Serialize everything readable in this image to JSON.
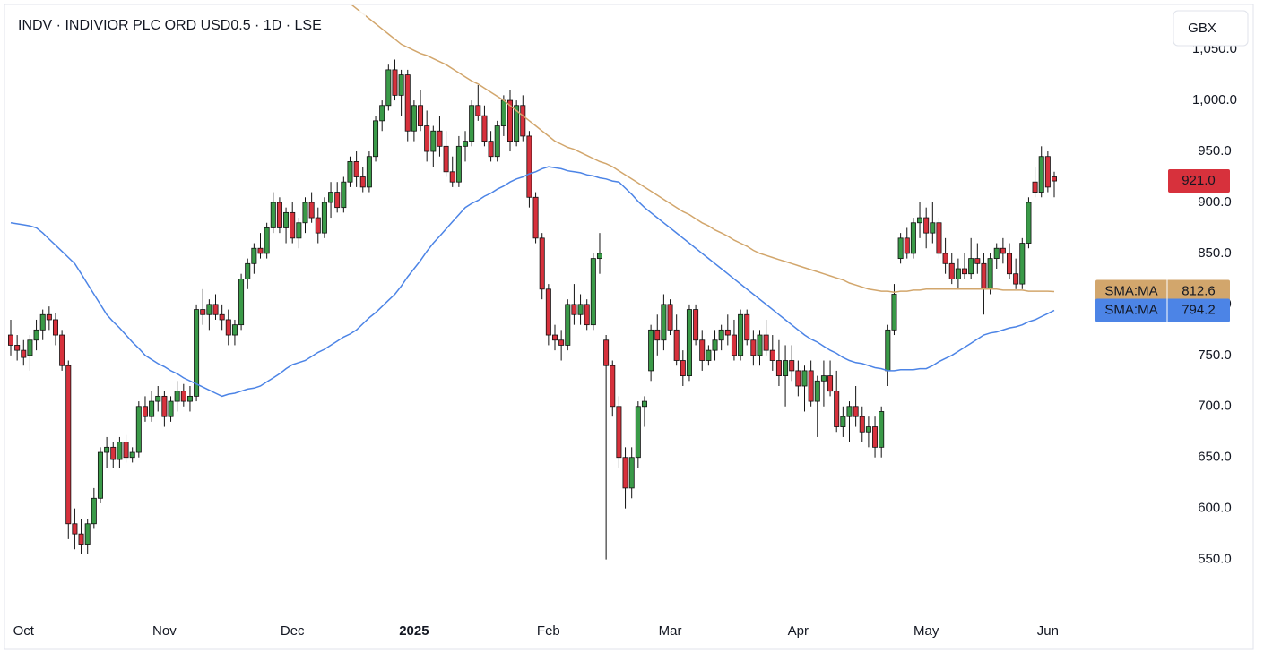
{
  "chart_data": {
    "type": "candlestick",
    "title": "INDV · INDIVIOR PLC ORD USD0.5 · 1D · LSE",
    "currency": "GBX",
    "up_color": "#3a9a48",
    "down_color": "#d7313c",
    "categories": [
      null,
      null,
      "Oct",
      null,
      null,
      null,
      null,
      null,
      null,
      null,
      null,
      null,
      null,
      null,
      null,
      null,
      null,
      null,
      null,
      null,
      null,
      null,
      null,
      null,
      "Nov",
      null,
      null,
      null,
      null,
      null,
      null,
      null,
      null,
      null,
      null,
      null,
      null,
      null,
      null,
      null,
      null,
      null,
      null,
      null,
      "Dec",
      null,
      null,
      null,
      null,
      null,
      null,
      null,
      null,
      null,
      null,
      null,
      null,
      null,
      null,
      null,
      null,
      null,
      null,
      "2025",
      null,
      null,
      null,
      null,
      null,
      null,
      null,
      null,
      null,
      null,
      null,
      null,
      null,
      null,
      null,
      null,
      null,
      null,
      null,
      null,
      "Feb",
      null,
      null,
      null,
      null,
      null,
      null,
      null,
      null,
      null,
      null,
      null,
      null,
      null,
      null,
      null,
      null,
      null,
      null,
      "Mar",
      null,
      null,
      null,
      null,
      null,
      null,
      null,
      null,
      null,
      null,
      null,
      null,
      null,
      null,
      null,
      null,
      null,
      null,
      null,
      "Apr",
      null,
      null,
      null,
      null,
      null,
      null,
      null,
      null,
      null,
      null,
      null,
      null,
      null,
      null,
      null,
      null,
      null,
      null,
      null,
      "May",
      null,
      null,
      null,
      null,
      null,
      null,
      null,
      null,
      null,
      null,
      null,
      null,
      null,
      null,
      null,
      null,
      null,
      null,
      "Jun",
      null
    ],
    "values": [
      [
        770,
        785,
        750,
        760
      ],
      [
        760,
        770,
        745,
        755
      ],
      [
        755,
        765,
        740,
        748
      ],
      [
        750,
        770,
        735,
        765
      ],
      [
        765,
        785,
        755,
        775
      ],
      [
        775,
        795,
        765,
        790
      ],
      [
        790,
        798,
        775,
        785
      ],
      [
        785,
        792,
        760,
        770
      ],
      [
        770,
        775,
        735,
        740
      ],
      [
        740,
        745,
        570,
        585
      ],
      [
        585,
        600,
        560,
        575
      ],
      [
        575,
        590,
        555,
        565
      ],
      [
        565,
        590,
        555,
        585
      ],
      [
        585,
        620,
        580,
        610
      ],
      [
        610,
        660,
        605,
        655
      ],
      [
        655,
        670,
        640,
        660
      ],
      [
        660,
        665,
        640,
        648
      ],
      [
        648,
        670,
        640,
        665
      ],
      [
        665,
        672,
        645,
        650
      ],
      [
        650,
        660,
        645,
        655
      ],
      [
        655,
        705,
        650,
        700
      ],
      [
        700,
        710,
        685,
        690
      ],
      [
        690,
        715,
        685,
        705
      ],
      [
        705,
        720,
        695,
        710
      ],
      [
        710,
        715,
        680,
        690
      ],
      [
        690,
        710,
        685,
        705
      ],
      [
        705,
        725,
        695,
        715
      ],
      [
        715,
        722,
        700,
        705
      ],
      [
        705,
        720,
        695,
        710
      ],
      [
        710,
        800,
        705,
        795
      ],
      [
        795,
        815,
        780,
        790
      ],
      [
        790,
        805,
        775,
        800
      ],
      [
        800,
        810,
        785,
        790
      ],
      [
        790,
        800,
        775,
        785
      ],
      [
        785,
        795,
        760,
        770
      ],
      [
        770,
        785,
        760,
        780
      ],
      [
        780,
        830,
        775,
        825
      ],
      [
        825,
        845,
        815,
        840
      ],
      [
        840,
        860,
        830,
        855
      ],
      [
        855,
        870,
        845,
        850
      ],
      [
        850,
        880,
        845,
        875
      ],
      [
        875,
        910,
        870,
        900
      ],
      [
        900,
        905,
        870,
        875
      ],
      [
        875,
        895,
        860,
        890
      ],
      [
        890,
        900,
        860,
        865
      ],
      [
        865,
        885,
        855,
        880
      ],
      [
        880,
        905,
        870,
        900
      ],
      [
        900,
        910,
        880,
        885
      ],
      [
        885,
        895,
        860,
        870
      ],
      [
        870,
        905,
        865,
        900
      ],
      [
        900,
        920,
        885,
        910
      ],
      [
        910,
        920,
        890,
        895
      ],
      [
        895,
        925,
        890,
        920
      ],
      [
        920,
        945,
        915,
        940
      ],
      [
        940,
        950,
        915,
        925
      ],
      [
        925,
        935,
        910,
        915
      ],
      [
        915,
        950,
        910,
        945
      ],
      [
        945,
        985,
        940,
        980
      ],
      [
        980,
        1000,
        970,
        995
      ],
      [
        995,
        1035,
        990,
        1030
      ],
      [
        1030,
        1040,
        1000,
        1005
      ],
      [
        1005,
        1030,
        985,
        1025
      ],
      [
        1025,
        1030,
        960,
        970
      ],
      [
        970,
        1000,
        960,
        995
      ],
      [
        995,
        1010,
        970,
        975
      ],
      [
        975,
        990,
        940,
        950
      ],
      [
        950,
        975,
        935,
        970
      ],
      [
        970,
        985,
        945,
        955
      ],
      [
        955,
        970,
        925,
        930
      ],
      [
        930,
        945,
        915,
        920
      ],
      [
        920,
        965,
        915,
        955
      ],
      [
        955,
        970,
        940,
        960
      ],
      [
        960,
        1000,
        955,
        995
      ],
      [
        995,
        1015,
        980,
        985
      ],
      [
        985,
        995,
        955,
        960
      ],
      [
        960,
        970,
        940,
        945
      ],
      [
        945,
        980,
        940,
        975
      ],
      [
        975,
        1005,
        965,
        1000
      ],
      [
        1000,
        1010,
        950,
        960
      ],
      [
        960,
        1000,
        955,
        995
      ],
      [
        995,
        1005,
        960,
        965
      ],
      [
        965,
        970,
        895,
        905
      ],
      [
        905,
        910,
        860,
        865
      ],
      [
        865,
        870,
        805,
        815
      ],
      [
        815,
        820,
        760,
        770
      ],
      [
        770,
        780,
        755,
        765
      ],
      [
        765,
        775,
        745,
        760
      ],
      [
        760,
        805,
        755,
        800
      ],
      [
        800,
        820,
        780,
        790
      ],
      [
        790,
        810,
        780,
        800
      ],
      [
        800,
        805,
        775,
        780
      ],
      [
        780,
        850,
        775,
        845
      ],
      [
        845,
        870,
        830,
        850
      ],
      [
        765,
        770,
        550,
        740
      ],
      [
        740,
        745,
        690,
        700
      ],
      [
        700,
        710,
        640,
        650
      ],
      [
        650,
        660,
        600,
        620
      ],
      [
        620,
        660,
        610,
        650
      ],
      [
        650,
        705,
        640,
        700
      ],
      [
        700,
        710,
        680,
        705
      ],
      [
        735,
        780,
        725,
        775
      ],
      [
        775,
        790,
        750,
        765
      ],
      [
        765,
        810,
        755,
        800
      ],
      [
        800,
        805,
        770,
        775
      ],
      [
        775,
        790,
        740,
        745
      ],
      [
        745,
        755,
        720,
        730
      ],
      [
        730,
        800,
        725,
        795
      ],
      [
        795,
        800,
        760,
        765
      ],
      [
        765,
        775,
        735,
        745
      ],
      [
        745,
        760,
        740,
        755
      ],
      [
        755,
        775,
        745,
        765
      ],
      [
        765,
        780,
        755,
        775
      ],
      [
        775,
        790,
        760,
        770
      ],
      [
        770,
        785,
        745,
        750
      ],
      [
        750,
        795,
        745,
        790
      ],
      [
        790,
        795,
        760,
        765
      ],
      [
        765,
        775,
        740,
        750
      ],
      [
        750,
        775,
        740,
        770
      ],
      [
        770,
        785,
        750,
        755
      ],
      [
        755,
        770,
        735,
        745
      ],
      [
        745,
        765,
        720,
        730
      ],
      [
        730,
        760,
        700,
        745
      ],
      [
        745,
        760,
        725,
        735
      ],
      [
        735,
        745,
        710,
        720
      ],
      [
        720,
        740,
        695,
        735
      ],
      [
        735,
        745,
        700,
        705
      ],
      [
        705,
        730,
        670,
        725
      ],
      [
        725,
        745,
        700,
        730
      ],
      [
        730,
        745,
        710,
        715
      ],
      [
        715,
        735,
        675,
        680
      ],
      [
        680,
        700,
        670,
        690
      ],
      [
        690,
        705,
        665,
        700
      ],
      [
        700,
        720,
        680,
        690
      ],
      [
        690,
        700,
        665,
        675
      ],
      [
        675,
        690,
        660,
        680
      ],
      [
        680,
        690,
        650,
        660
      ],
      [
        660,
        700,
        650,
        695
      ],
      [
        735,
        780,
        720,
        775
      ],
      [
        775,
        820,
        770,
        810
      ],
      [
        845,
        870,
        840,
        865
      ],
      [
        865,
        875,
        845,
        850
      ],
      [
        850,
        885,
        845,
        880
      ],
      [
        880,
        900,
        865,
        885
      ],
      [
        885,
        895,
        855,
        870
      ],
      [
        870,
        900,
        860,
        880
      ],
      [
        880,
        885,
        845,
        850
      ],
      [
        850,
        865,
        830,
        840
      ],
      [
        840,
        850,
        820,
        825
      ],
      [
        825,
        845,
        815,
        835
      ],
      [
        835,
        850,
        825,
        830
      ],
      [
        830,
        865,
        825,
        845
      ],
      [
        845,
        860,
        830,
        840
      ],
      [
        840,
        850,
        790,
        815
      ],
      [
        815,
        850,
        810,
        845
      ],
      [
        845,
        860,
        835,
        855
      ],
      [
        855,
        865,
        840,
        850
      ],
      [
        850,
        860,
        825,
        830
      ],
      [
        830,
        845,
        815,
        820
      ],
      [
        820,
        865,
        815,
        860
      ],
      [
        860,
        905,
        855,
        900
      ],
      [
        920,
        935,
        905,
        910
      ],
      [
        910,
        955,
        905,
        945
      ],
      [
        945,
        950,
        910,
        915
      ],
      [
        925,
        930,
        905,
        921
      ]
    ],
    "series": [
      {
        "name": "SMA:MA",
        "color": "#d2a66c",
        "values": [
          null,
          null,
          null,
          null,
          null,
          null,
          null,
          null,
          null,
          null,
          null,
          null,
          null,
          null,
          null,
          null,
          null,
          null,
          null,
          null,
          null,
          null,
          null,
          null,
          null,
          null,
          null,
          null,
          null,
          null,
          null,
          null,
          null,
          null,
          null,
          null,
          null,
          null,
          null,
          null,
          null,
          null,
          null,
          null,
          null,
          null,
          null,
          null,
          null,
          null,
          null,
          null,
          null,
          1095,
          1090,
          1085,
          1080,
          1075,
          1070,
          1065,
          1060,
          1055,
          1052,
          1049,
          1046,
          1044,
          1041,
          1038,
          1035,
          1031,
          1027,
          1023,
          1019,
          1016,
          1012,
          1008,
          1004,
          1000,
          995,
          990,
          985,
          980,
          975,
          970,
          965,
          960,
          957,
          954,
          952,
          949,
          946,
          943,
          940,
          938,
          935,
          931,
          927,
          923,
          919,
          915,
          911,
          907,
          903,
          899,
          895,
          891,
          888,
          884,
          880,
          877,
          873,
          870,
          867,
          863,
          860,
          857,
          853,
          850,
          848,
          846,
          844,
          842,
          840,
          838,
          836,
          834,
          832,
          830,
          828,
          826,
          824,
          821,
          819,
          817,
          815,
          814,
          813,
          813,
          812,
          813,
          813,
          814,
          814,
          815,
          815,
          815,
          815,
          815,
          815,
          815,
          815,
          815,
          815,
          815,
          815,
          814,
          814,
          814,
          814,
          813,
          813,
          813,
          813,
          812.6
        ]
      },
      {
        "name": "SMA:MA",
        "color": "#4c84e6",
        "values": [
          880,
          879,
          878,
          877,
          875,
          870,
          864,
          858,
          852,
          846,
          840,
          830,
          820,
          810,
          800,
          790,
          783,
          777,
          770,
          763,
          757,
          750,
          746,
          742,
          739,
          735,
          732,
          728,
          725,
          722,
          719,
          716,
          713,
          710,
          712,
          713,
          715,
          717,
          718,
          720,
          724,
          728,
          732,
          737,
          741,
          743,
          745,
          749,
          753,
          756,
          760,
          764,
          768,
          771,
          775,
          781,
          787,
          792,
          798,
          804,
          810,
          818,
          827,
          835,
          843,
          852,
          860,
          867,
          874,
          881,
          888,
          895,
          899,
          902,
          906,
          909,
          913,
          916,
          920,
          923,
          925,
          928,
          930,
          933,
          935,
          934,
          933,
          931,
          930,
          929,
          927,
          926,
          924,
          923,
          921,
          920,
          914,
          908,
          901,
          895,
          890,
          885,
          880,
          875,
          870,
          865,
          860,
          855,
          850,
          845,
          840,
          835,
          830,
          825,
          820,
          815,
          810,
          805,
          800,
          795,
          790,
          785,
          780,
          775,
          770,
          766,
          763,
          759,
          755,
          752,
          748,
          745,
          743,
          742,
          740,
          738,
          737,
          735,
          735,
          736,
          736,
          736,
          737,
          737,
          740,
          744,
          747,
          750,
          754,
          758,
          762,
          766,
          770,
          772,
          773,
          775,
          777,
          778,
          780,
          783,
          785,
          788,
          791,
          794.2
        ]
      }
    ],
    "ylim": [
      497,
      1094
    ],
    "yticks": [
      {
        "value": 550,
        "label": "550.0"
      },
      {
        "value": 600,
        "label": "600.0"
      },
      {
        "value": 650,
        "label": "650.0"
      },
      {
        "value": 700,
        "label": "700.0"
      },
      {
        "value": 750,
        "label": "750.0"
      },
      {
        "value": 800,
        "label": "800.0"
      },
      {
        "value": 850,
        "label": "850.0"
      },
      {
        "value": 900,
        "label": "900.0"
      },
      {
        "value": 950,
        "label": "950.0"
      },
      {
        "value": 1000,
        "label": "1,000.0"
      },
      {
        "value": 1050,
        "label": "1,050.0"
      }
    ],
    "last_label": "921.0"
  }
}
